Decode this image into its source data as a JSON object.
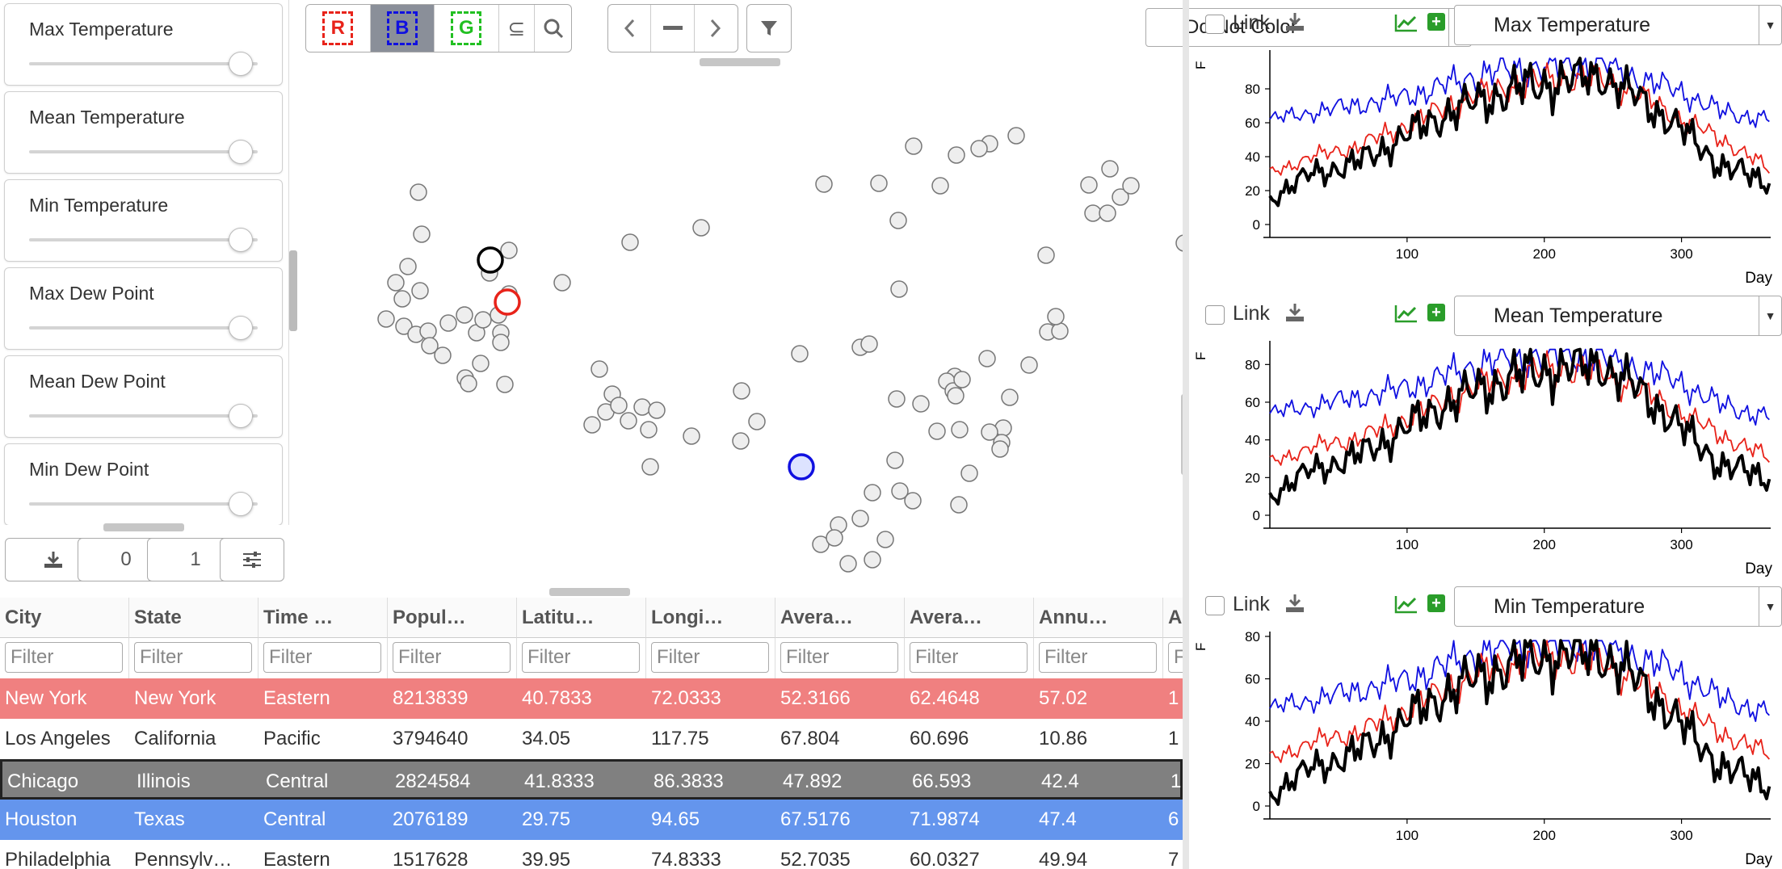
{
  "sliders": [
    {
      "label": "Max Temperature"
    },
    {
      "label": "Mean Temperature"
    },
    {
      "label": "Min Temperature"
    },
    {
      "label": "Max Dew Point"
    },
    {
      "label": "Mean Dew Point"
    },
    {
      "label": "Min Dew Point"
    }
  ],
  "left_buttons": {
    "page_a": "0",
    "page_b": "1"
  },
  "toolbar": {
    "r_label": "R",
    "b_label": "B",
    "g_label": "G",
    "subset_label": "⊆",
    "color_by": "Do Not Color"
  },
  "colors": {
    "red": "#e8231a",
    "blue": "#1010e0",
    "green": "#22c022",
    "black": "#000000"
  },
  "table": {
    "columns": [
      "City",
      "State",
      "Time …",
      "Popul…",
      "Latitu…",
      "Longi…",
      "Avera…",
      "Avera…",
      "Annu…",
      "A"
    ],
    "filter_placeholder": "Filter",
    "rows": [
      {
        "cells": [
          "New York",
          "New York",
          "Eastern",
          "8213839",
          "40.7833",
          "72.0333",
          "52.3166",
          "62.4648",
          "57.02",
          "1"
        ],
        "highlight": "red"
      },
      {
        "cells": [
          "Los Angeles",
          "California",
          "Pacific",
          "3794640",
          "34.05",
          "117.75",
          "67.804",
          "60.696",
          "10.86",
          "1"
        ],
        "highlight": "none"
      },
      {
        "cells": [
          "Chicago",
          "Illinois",
          "Central",
          "2824584",
          "41.8333",
          "86.3833",
          "47.892",
          "66.593",
          "42.4",
          "1"
        ],
        "highlight": "black"
      },
      {
        "cells": [
          "Houston",
          "Texas",
          "Central",
          "2076189",
          "29.75",
          "94.65",
          "67.5176",
          "71.9874",
          "47.4",
          "6"
        ],
        "highlight": "blue"
      },
      {
        "cells": [
          "Philadelphia",
          "Pennsylv…",
          "Eastern",
          "1517628",
          "39.95",
          "74.8333",
          "52.7035",
          "60.0327",
          "49.94",
          "7"
        ],
        "highlight": "none"
      }
    ]
  },
  "charts": [
    {
      "link_label": "Link",
      "variable": "Max Temperature",
      "ylabel": "F",
      "xlabel": "Day"
    },
    {
      "link_label": "Link",
      "variable": "Mean Temperature",
      "ylabel": "F",
      "xlabel": "Day"
    },
    {
      "link_label": "Link",
      "variable": "Min Temperature",
      "ylabel": "F",
      "xlabel": "Day"
    }
  ],
  "chart_data": [
    {
      "type": "line",
      "title": "",
      "xlabel": "Day",
      "ylabel": "F",
      "xlim": [
        0,
        365
      ],
      "ylim": [
        0,
        100
      ],
      "xticks": [
        100,
        200,
        300
      ],
      "yticks": [
        0,
        20,
        40,
        60,
        80
      ],
      "series": [
        {
          "color": "#1010e0",
          "x": [
            0,
            30,
            60,
            90,
            120,
            150,
            180,
            210,
            240,
            270,
            300,
            330,
            365
          ],
          "values": [
            62,
            66,
            70,
            74,
            80,
            88,
            92,
            94,
            96,
            86,
            78,
            66,
            62
          ]
        },
        {
          "color": "#e8231a",
          "x": [
            0,
            30,
            60,
            90,
            120,
            150,
            180,
            210,
            240,
            270,
            300,
            330,
            365
          ],
          "values": [
            30,
            40,
            45,
            55,
            66,
            76,
            82,
            86,
            86,
            76,
            62,
            50,
            32
          ]
        },
        {
          "color": "#000000",
          "x": [
            0,
            30,
            60,
            90,
            120,
            150,
            180,
            210,
            240,
            270,
            300,
            330,
            365
          ],
          "values": [
            15,
            30,
            35,
            48,
            62,
            72,
            80,
            84,
            88,
            74,
            56,
            34,
            25
          ]
        }
      ]
    },
    {
      "type": "line",
      "title": "",
      "xlabel": "Day",
      "ylabel": "F",
      "xlim": [
        0,
        365
      ],
      "ylim": [
        0,
        90
      ],
      "xticks": [
        100,
        200,
        300
      ],
      "yticks": [
        0,
        20,
        40,
        60,
        80
      ],
      "series": [
        {
          "color": "#1010e0",
          "x": [
            0,
            30,
            60,
            90,
            120,
            150,
            180,
            210,
            240,
            270,
            300,
            330,
            365
          ],
          "values": [
            54,
            58,
            62,
            66,
            72,
            80,
            84,
            86,
            84,
            78,
            70,
            58,
            52
          ]
        },
        {
          "color": "#e8231a",
          "x": [
            0,
            30,
            60,
            90,
            120,
            150,
            180,
            210,
            240,
            270,
            300,
            330,
            365
          ],
          "values": [
            28,
            36,
            40,
            48,
            58,
            68,
            74,
            78,
            76,
            66,
            54,
            42,
            30
          ]
        },
        {
          "color": "#000000",
          "x": [
            0,
            30,
            60,
            90,
            120,
            150,
            180,
            210,
            240,
            270,
            300,
            330,
            365
          ],
          "values": [
            10,
            24,
            30,
            42,
            56,
            66,
            74,
            78,
            80,
            66,
            46,
            26,
            20
          ]
        }
      ]
    },
    {
      "type": "line",
      "title": "",
      "xlabel": "Day",
      "ylabel": "F",
      "xlim": [
        0,
        365
      ],
      "ylim": [
        0,
        80
      ],
      "xticks": [
        100,
        200,
        300
      ],
      "yticks": [
        0,
        20,
        40,
        60,
        80
      ],
      "series": [
        {
          "color": "#1010e0",
          "x": [
            0,
            30,
            60,
            90,
            120,
            150,
            180,
            210,
            240,
            270,
            300,
            330,
            365
          ],
          "values": [
            46,
            50,
            54,
            58,
            64,
            72,
            76,
            78,
            76,
            70,
            62,
            50,
            44
          ]
        },
        {
          "color": "#e8231a",
          "x": [
            0,
            30,
            60,
            90,
            120,
            150,
            180,
            210,
            240,
            270,
            300,
            330,
            365
          ],
          "values": [
            22,
            30,
            34,
            42,
            52,
            62,
            68,
            70,
            68,
            58,
            46,
            34,
            24
          ]
        },
        {
          "color": "#000000",
          "x": [
            0,
            30,
            60,
            90,
            120,
            150,
            180,
            210,
            240,
            270,
            300,
            330,
            365
          ],
          "values": [
            5,
            18,
            24,
            36,
            50,
            60,
            68,
            72,
            72,
            58,
            38,
            18,
            10
          ]
        }
      ]
    }
  ]
}
